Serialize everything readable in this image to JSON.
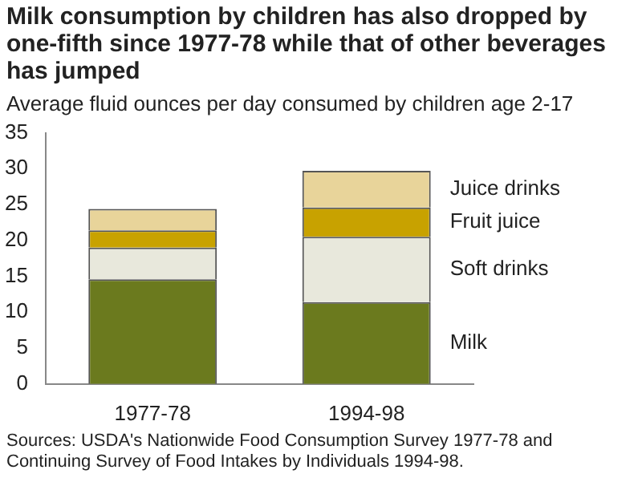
{
  "chart_data": {
    "type": "bar",
    "stacked": true,
    "title": "Milk consumption by children has also dropped by one-fifth since 1977-78 while that of other beverages has jumped",
    "subtitle": "Average fluid ounces per day consumed by children age 2-17",
    "categories": [
      "1977-78",
      "1994-98"
    ],
    "series": [
      {
        "name": "Milk",
        "color": "#6b7a1e",
        "values": [
          14.6,
          11.4
        ]
      },
      {
        "name": "Soft drinks",
        "color": "#e8e8dc",
        "values": [
          4.4,
          9.1
        ]
      },
      {
        "name": "Fruit juice",
        "color": "#c8a200",
        "values": [
          2.4,
          4.1
        ]
      },
      {
        "name": "Juice drinks",
        "color": "#e8d49a",
        "values": [
          3.0,
          5.1
        ]
      }
    ],
    "ylim": [
      0,
      35
    ],
    "yticks": [
      0,
      5,
      10,
      15,
      20,
      25,
      30,
      35
    ],
    "grid": false,
    "legend": false,
    "annotations": [
      "Sources:  USDA's Nationwide Food Consumption Survey 1977-78 and Continuing Survey of Food Intakes by Individuals 1994-98."
    ]
  }
}
